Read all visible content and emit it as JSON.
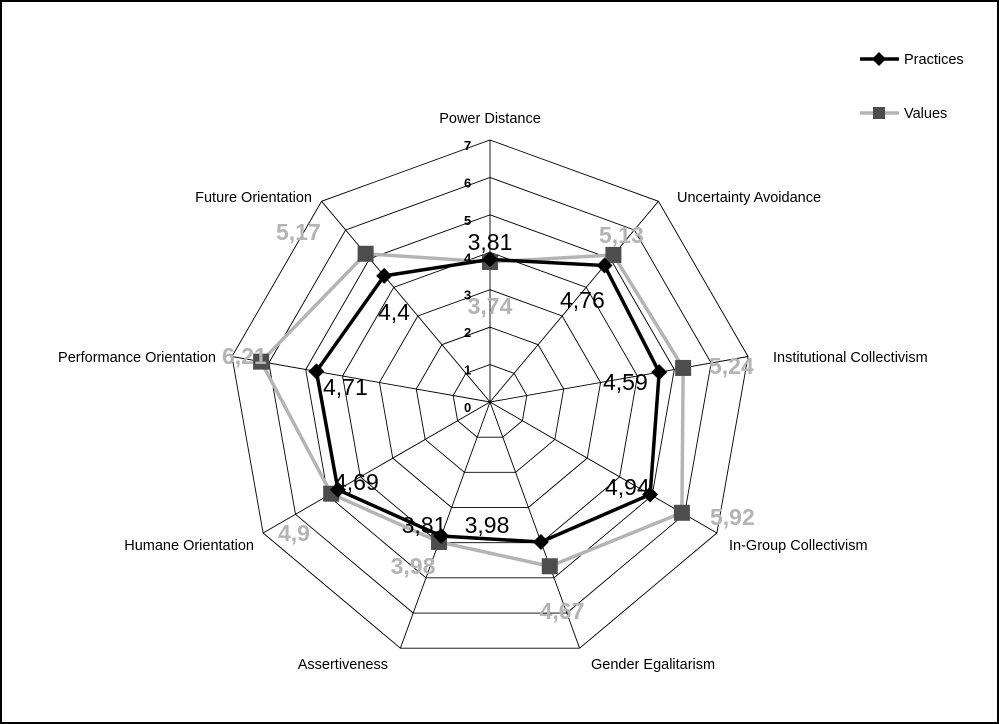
{
  "chart_data": {
    "type": "radar",
    "axes": [
      "Power Distance",
      "Uncertainty Avoidance",
      "Institutional Collectivism",
      "In-Group Collectivism",
      "Gender Egalitarism",
      "Assertiveness",
      "Humane Orientation",
      "Performance Orientation",
      "Future Orientation"
    ],
    "ticks": [
      "0",
      "1",
      "2",
      "3",
      "4",
      "5",
      "6",
      "7"
    ],
    "rmin": 0,
    "rmax": 7,
    "grid": true,
    "legend_position": "top-right",
    "series": [
      {
        "name": "Practices",
        "color": "#000000",
        "marker": "diamond",
        "values": [
          3.81,
          4.76,
          4.59,
          4.94,
          3.98,
          3.81,
          4.69,
          4.71,
          4.4
        ],
        "labels": [
          "3,81",
          "4,76",
          "4,59",
          "4,94",
          "3,98",
          "3,81",
          "4,69",
          "4,71",
          "4,4"
        ]
      },
      {
        "name": "Values",
        "color": "#b4b4b4",
        "marker_color": "#4d4d4d",
        "marker": "square",
        "values": [
          3.74,
          5.13,
          5.24,
          5.92,
          4.67,
          3.98,
          4.9,
          6.21,
          5.17
        ],
        "labels": [
          "3,74",
          "5,13",
          "5,24",
          "5,92",
          "4,67",
          "3,98",
          "4,9",
          "6,21",
          "5,17"
        ]
      }
    ]
  },
  "legend": {
    "practices_label": "Practices",
    "values_label": "Values"
  }
}
